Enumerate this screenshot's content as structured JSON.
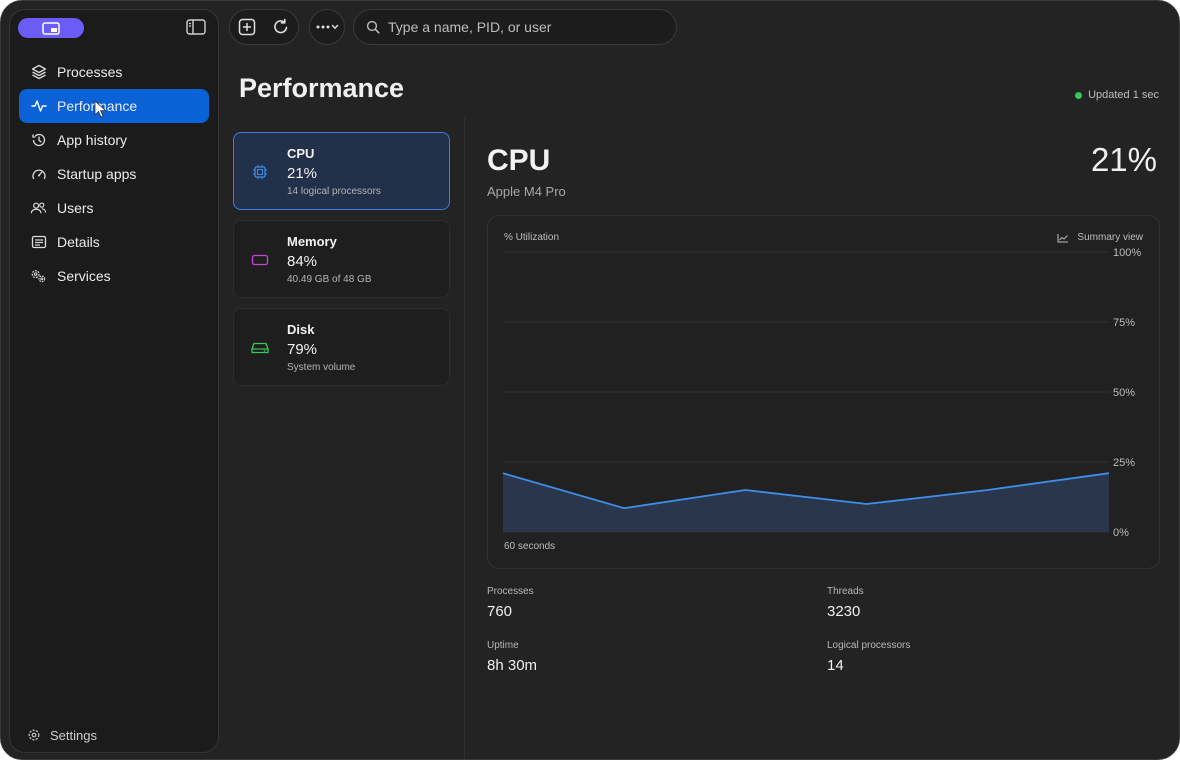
{
  "sidebar": {
    "items": [
      {
        "label": "Processes",
        "icon": "layers-icon"
      },
      {
        "label": "Performance",
        "icon": "activity-icon"
      },
      {
        "label": "App history",
        "icon": "history-icon"
      },
      {
        "label": "Startup apps",
        "icon": "gauge-icon"
      },
      {
        "label": "Users",
        "icon": "users-icon"
      },
      {
        "label": "Details",
        "icon": "details-list-icon"
      },
      {
        "label": "Services",
        "icon": "gears-icon"
      }
    ],
    "active_index": 1,
    "settings_label": "Settings"
  },
  "toolbar": {
    "search_placeholder": "Type a name, PID, or user"
  },
  "page": {
    "title": "Performance",
    "updated": "Updated 1 sec"
  },
  "resources": [
    {
      "name": "CPU",
      "value": "21%",
      "detail": "14 logical processors",
      "color": "#3d8ee8"
    },
    {
      "name": "Memory",
      "value": "84%",
      "detail": "40.49 GB of 48 GB",
      "color": "#c648d8"
    },
    {
      "name": "Disk",
      "value": "79%",
      "detail": "System volume",
      "color": "#34c759"
    }
  ],
  "detail": {
    "title": "CPU",
    "subtitle": "Apple M4 Pro",
    "percent": "21%",
    "summary_view": "Summary view",
    "stats": [
      {
        "label": "Processes",
        "value": "760"
      },
      {
        "label": "Threads",
        "value": "3230"
      },
      {
        "label": "Uptime",
        "value": "8h 30m"
      },
      {
        "label": "Logical processors",
        "value": "14"
      }
    ]
  },
  "chart_data": {
    "type": "area",
    "title": "% Utilization",
    "xlabel": "60 seconds",
    "ylabel": "",
    "ylim": [
      0,
      100
    ],
    "yticks": [
      "100%",
      "75%",
      "50%",
      "25%",
      "0%"
    ],
    "x": [
      0,
      1,
      2,
      3,
      4,
      5
    ],
    "series": [
      {
        "values": [
          21,
          8.5,
          15,
          10,
          15,
          21
        ]
      }
    ],
    "grid": true,
    "color": "#3d8ee8"
  }
}
